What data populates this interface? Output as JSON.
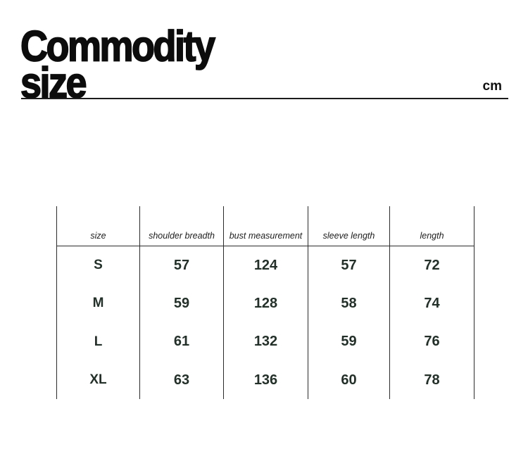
{
  "page": {
    "title_line1": "Commodity",
    "title_line2": "size",
    "unit_label": "cm"
  },
  "size_table": {
    "column_headers": [
      "size",
      "shoulder breadth",
      "bust measurement",
      "sleeve length",
      "length"
    ],
    "rows": [
      [
        "S",
        "57",
        "124",
        "57",
        "72"
      ],
      [
        "M",
        "59",
        "128",
        "58",
        "74"
      ],
      [
        "L",
        "61",
        "132",
        "59",
        "76"
      ],
      [
        "XL",
        "63",
        "136",
        "60",
        "78"
      ]
    ]
  },
  "chart_data": {
    "type": "table",
    "title": "Commodity size",
    "unit": "cm",
    "columns": [
      "size",
      "shoulder breadth",
      "bust measurement",
      "sleeve length",
      "length"
    ],
    "rows": [
      [
        "S",
        57,
        124,
        57,
        72
      ],
      [
        "M",
        59,
        128,
        58,
        74
      ],
      [
        "L",
        61,
        132,
        59,
        76
      ],
      [
        "XL",
        63,
        136,
        60,
        78
      ]
    ]
  },
  "colors": {
    "title_text": "#0c0c0c",
    "data_text": "#223029",
    "grid_line": "#2b2b2b",
    "background": "#ffffff"
  }
}
